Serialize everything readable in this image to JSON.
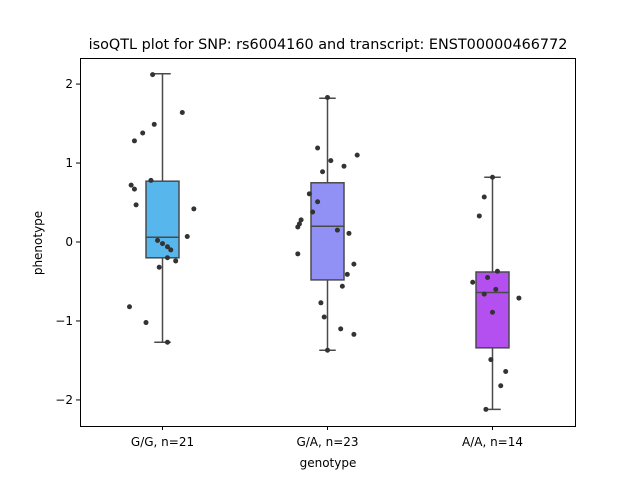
{
  "chart_data": {
    "type": "box",
    "title": "isoQTL plot for SNP: rs6004160 and transcript: ENST00000466772",
    "xlabel": "genotype",
    "ylabel": "phenotype",
    "ylim": [
      -2.33,
      2.33
    ],
    "yticks": [
      -2,
      -1,
      0,
      1,
      2
    ],
    "ytick_labels": [
      "−2",
      "−1",
      "0",
      "1",
      "2"
    ],
    "grid": false,
    "categories": [
      "G/G, n=21",
      "G/A, n=23",
      "A/A, n=14"
    ],
    "colors": [
      "#57b6ec",
      "#9090f5",
      "#b44ff0"
    ],
    "point_color": "#333333",
    "boxes": [
      {
        "whisker_low": -1.27,
        "q1": -0.2,
        "median": 0.06,
        "q3": 0.77,
        "whisker_high": 2.13
      },
      {
        "whisker_low": -1.37,
        "q1": -0.48,
        "median": 0.2,
        "q3": 0.75,
        "whisker_high": 1.82
      },
      {
        "whisker_low": -2.12,
        "q1": -1.34,
        "median": -0.64,
        "q3": -0.38,
        "whisker_high": 0.82
      }
    ],
    "points": [
      [
        2.12,
        1.64,
        1.49,
        1.38,
        1.28,
        0.78,
        0.72,
        0.67,
        0.47,
        0.42,
        0.07,
        0.02,
        -0.02,
        -0.06,
        -0.1,
        -0.2,
        -0.24,
        -0.32,
        -0.82,
        -1.02,
        -1.27
      ],
      [
        1.83,
        1.19,
        1.1,
        1.03,
        0.96,
        0.89,
        0.61,
        0.51,
        0.38,
        0.28,
        0.23,
        0.19,
        0.15,
        0.11,
        -0.15,
        -0.28,
        -0.41,
        -0.56,
        -0.77,
        -0.95,
        -1.1,
        -1.17,
        -1.37
      ],
      [
        0.82,
        0.57,
        0.33,
        -0.37,
        -0.45,
        -0.51,
        -0.6,
        -0.66,
        -0.71,
        -0.89,
        -1.49,
        -1.64,
        -1.82,
        -2.12
      ]
    ],
    "jitter": [
      [
        -0.06,
        0.12,
        -0.05,
        -0.12,
        -0.17,
        -0.07,
        -0.19,
        -0.17,
        -0.16,
        0.19,
        0.15,
        -0.03,
        0.0,
        0.03,
        0.05,
        0.03,
        0.08,
        -0.02,
        -0.2,
        -0.1,
        0.03
      ],
      [
        0.0,
        -0.06,
        0.18,
        0.02,
        0.1,
        -0.03,
        -0.11,
        -0.06,
        -0.09,
        -0.16,
        -0.17,
        -0.18,
        0.06,
        0.13,
        -0.18,
        0.16,
        0.12,
        0.09,
        -0.04,
        -0.02,
        0.08,
        0.16,
        0.0
      ],
      [
        0.0,
        -0.05,
        -0.08,
        0.03,
        -0.03,
        -0.12,
        0.02,
        -0.05,
        0.16,
        0.0,
        -0.01,
        0.08,
        0.05,
        -0.04
      ]
    ]
  }
}
